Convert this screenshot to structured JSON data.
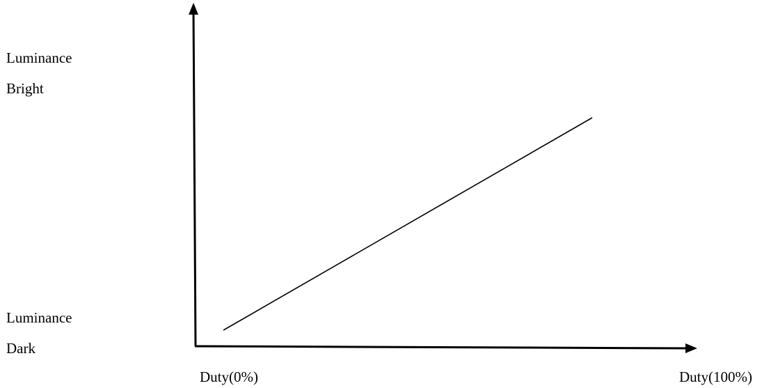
{
  "y_axis": {
    "top_label_line1": "Luminance",
    "top_label_line2": "Bright",
    "bottom_label_line1": "Luminance",
    "bottom_label_line2": "Dark"
  },
  "x_axis": {
    "min_label": "Duty(0%)",
    "max_label": "Duty(100%)"
  },
  "relationship": "linear-increasing",
  "colors": {
    "line": "#000000",
    "background": "#ffffff"
  }
}
